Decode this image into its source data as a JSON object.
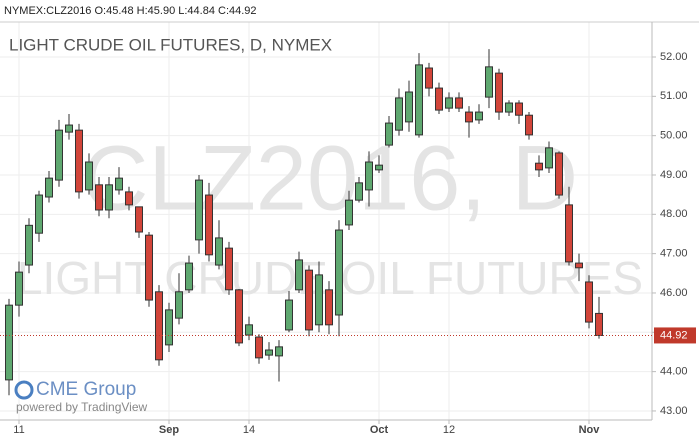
{
  "chart_data": {
    "type": "candlestick",
    "header": "NYMEX:CLZ2016 O:45.48 H:45.90 L:44.84 C:44.92",
    "title": "LIGHT CRUDE OIL FUTURES, D, NYMEX",
    "watermark": [
      "CLZ2016, D",
      "LIGHT CRUDE OIL FUTURES"
    ],
    "logo": "CME Group",
    "credit": "powered by TradingView",
    "up_color": "#5fa870",
    "down_color": "#d2453a",
    "last_price": {
      "value": 44.92,
      "label": "44.92"
    },
    "grid": true,
    "categories": [
      null,
      "11",
      null,
      null,
      null,
      null,
      null,
      null,
      null,
      null,
      null,
      null,
      null,
      null,
      null,
      null,
      "Sep",
      null,
      null,
      null,
      null,
      null,
      null,
      null,
      "14",
      null,
      null,
      null,
      null,
      null,
      null,
      null,
      null,
      null,
      null,
      null,
      null,
      "Oct",
      null,
      null,
      null,
      null,
      null,
      null,
      "12",
      null,
      null,
      null,
      null,
      null,
      null,
      null,
      null,
      null,
      null,
      null,
      null,
      null,
      "Nov",
      null
    ],
    "open": [
      43.79,
      45.69,
      46.71,
      47.52,
      48.44,
      48.87,
      50.09,
      50.14,
      48.62,
      48.75,
      48.11,
      48.62,
      48.57,
      48.19,
      47.47,
      46.03,
      44.68,
      45.36,
      46.08,
      47.35,
      48.49,
      46.71,
      47.14,
      46.08,
      44.93,
      44.88,
      44.42,
      44.4,
      45.06,
      46.08,
      46.58,
      45.19,
      46.08,
      45.44,
      47.73,
      48.36,
      48.62,
      49.13,
      49.76,
      50.14,
      50.35,
      50.02,
      51.72,
      51.21,
      50.7,
      50.96,
      50.6,
      50.4,
      50.98,
      51.59,
      50.6,
      50.83,
      50.52,
      49.3,
      49.18,
      49.56,
      48.24,
      46.76,
      46.28,
      45.48
    ],
    "high": [
      45.85,
      46.8,
      47.9,
      48.6,
      49.1,
      50.4,
      50.55,
      50.3,
      49.55,
      48.95,
      48.95,
      49.2,
      48.7,
      48.2,
      47.55,
      46.2,
      45.75,
      46.5,
      46.95,
      49.0,
      48.8,
      47.85,
      47.3,
      46.1,
      45.4,
      44.95,
      44.75,
      44.8,
      46.05,
      47.05,
      46.7,
      46.8,
      46.3,
      47.85,
      48.6,
      48.95,
      49.6,
      49.5,
      50.5,
      51.2,
      51.4,
      52.1,
      51.85,
      51.35,
      51.1,
      51.1,
      50.75,
      50.8,
      52.2,
      51.7,
      50.9,
      50.9,
      50.6,
      49.5,
      49.85,
      49.6,
      48.7,
      47.0,
      46.45,
      45.9
    ],
    "low": [
      43.4,
      45.4,
      46.5,
      47.3,
      48.3,
      48.7,
      49.9,
      48.4,
      48.5,
      47.95,
      47.9,
      48.5,
      48.1,
      47.4,
      45.65,
      44.15,
      44.5,
      45.2,
      46.0,
      47.0,
      46.8,
      46.6,
      45.95,
      44.65,
      44.8,
      44.2,
      44.3,
      43.75,
      45.0,
      46.0,
      44.9,
      45.0,
      44.95,
      44.9,
      47.6,
      48.3,
      48.2,
      49.05,
      49.7,
      50.0,
      50.1,
      49.95,
      51.0,
      50.55,
      50.6,
      50.6,
      49.95,
      50.3,
      50.7,
      50.4,
      50.5,
      50.3,
      49.9,
      48.95,
      49.05,
      48.4,
      46.7,
      46.3,
      45.1,
      44.84
    ],
    "close": [
      45.69,
      46.53,
      47.72,
      48.49,
      48.92,
      50.14,
      50.27,
      48.57,
      49.33,
      48.11,
      48.75,
      48.92,
      48.24,
      47.55,
      45.82,
      44.3,
      45.57,
      46.03,
      46.76,
      48.87,
      46.97,
      47.4,
      46.08,
      44.73,
      45.19,
      44.35,
      44.55,
      44.63,
      45.82,
      46.84,
      45.06,
      46.46,
      45.19,
      47.6,
      48.36,
      48.8,
      49.33,
      49.25,
      50.32,
      50.96,
      51.11,
      51.8,
      51.21,
      50.65,
      50.96,
      50.7,
      50.35,
      50.6,
      51.75,
      50.6,
      50.83,
      50.52,
      50.02,
      49.13,
      49.69,
      48.49,
      46.79,
      46.64,
      45.26,
      44.92
    ],
    "ylim": [
      42.77,
      52.89
    ],
    "yticks": [
      {
        "value": 43,
        "label": "43.00"
      },
      {
        "value": 44,
        "label": "44.00"
      },
      {
        "value": 45,
        "label": "45.00"
      },
      {
        "value": 46,
        "label": "46.00"
      },
      {
        "value": 47,
        "label": "47.00"
      },
      {
        "value": 48,
        "label": "48.00"
      },
      {
        "value": 49,
        "label": "49.00"
      },
      {
        "value": 50,
        "label": "50.00"
      },
      {
        "value": 51,
        "label": "51.00"
      },
      {
        "value": 52,
        "label": "52.00"
      }
    ]
  }
}
